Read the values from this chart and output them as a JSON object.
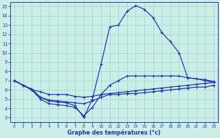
{
  "xlabel": "Graphe des températures (°c)",
  "xlim_min": -0.5,
  "xlim_max": 23.5,
  "ylim_min": 2.5,
  "ylim_max": 15.5,
  "xticks": [
    0,
    1,
    2,
    3,
    4,
    5,
    6,
    7,
    8,
    9,
    10,
    11,
    12,
    13,
    14,
    15,
    16,
    17,
    18,
    19,
    20,
    21,
    22,
    23
  ],
  "yticks": [
    3,
    4,
    5,
    6,
    7,
    8,
    9,
    10,
    11,
    12,
    13,
    14,
    15
  ],
  "bg_color": "#cceee8",
  "grid_color": "#99ddcc",
  "line_color": "#2233bb",
  "line1_x": [
    0,
    1,
    2,
    3,
    4,
    5,
    6,
    7,
    8,
    9,
    10,
    11,
    12,
    13,
    14,
    15,
    16,
    17,
    18,
    19,
    20,
    21,
    22,
    23
  ],
  "line1_y": [
    7.0,
    6.5,
    6.0,
    5.8,
    5.5,
    5.5,
    5.5,
    5.3,
    5.2,
    5.3,
    5.5,
    5.6,
    5.7,
    5.8,
    5.9,
    6.0,
    6.1,
    6.2,
    6.3,
    6.4,
    6.5,
    6.6,
    6.7,
    6.8
  ],
  "line2_x": [
    0,
    1,
    2,
    3,
    4,
    5,
    6,
    7,
    8,
    9,
    10,
    11,
    12,
    13,
    14,
    15,
    16,
    17,
    18,
    19,
    20,
    21,
    22,
    23
  ],
  "line2_y": [
    7.0,
    6.5,
    6.1,
    5.2,
    4.9,
    4.8,
    4.7,
    4.6,
    4.5,
    4.8,
    5.2,
    5.5,
    5.5,
    5.6,
    5.6,
    5.7,
    5.8,
    5.9,
    6.0,
    6.1,
    6.2,
    6.3,
    6.3,
    6.5
  ],
  "line3_x": [
    0,
    1,
    2,
    3,
    4,
    5,
    6,
    7,
    8,
    9,
    10,
    11,
    12,
    13,
    14,
    15,
    16,
    17,
    18,
    19,
    20,
    21,
    22,
    23
  ],
  "line3_y": [
    7.0,
    6.5,
    6.0,
    5.0,
    4.5,
    4.4,
    4.3,
    4.1,
    3.2,
    4.1,
    5.5,
    6.5,
    7.0,
    7.5,
    7.5,
    7.5,
    7.5,
    7.5,
    7.5,
    7.5,
    7.3,
    7.2,
    7.1,
    6.9
  ],
  "line4_x": [
    0,
    1,
    2,
    3,
    4,
    5,
    6,
    7,
    8,
    9,
    10,
    11,
    12,
    13,
    14,
    15,
    16,
    17,
    18,
    19,
    20,
    21,
    22,
    23
  ],
  "line4_y": [
    7.0,
    6.5,
    6.0,
    5.2,
    4.8,
    4.7,
    4.6,
    4.3,
    3.0,
    5.0,
    8.8,
    12.8,
    13.0,
    14.5,
    15.1,
    14.7,
    13.8,
    12.2,
    11.2,
    10.0,
    7.3,
    7.2,
    7.0,
    6.8
  ]
}
